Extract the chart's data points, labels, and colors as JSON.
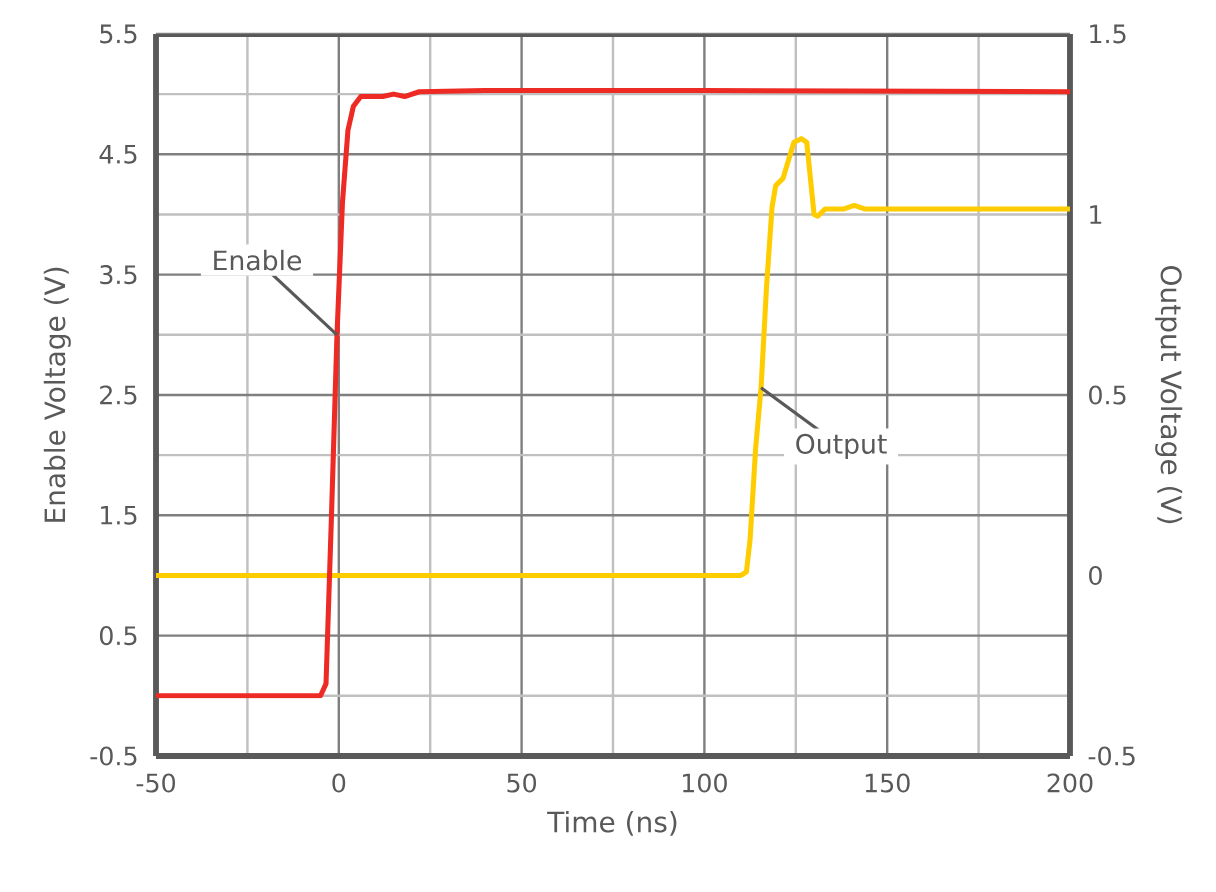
{
  "chart_data": {
    "type": "line",
    "xlabel": "Time (ns)",
    "ylabel": "Enable Voltage (V)",
    "y2label": "Output Voltage (V)",
    "xlim": [
      -50,
      200
    ],
    "ylim": [
      -0.5,
      5.5
    ],
    "y2lim": [
      -0.5,
      1.5
    ],
    "grid": true,
    "marker": "none",
    "xticks": [
      -50,
      {
        "value": -25,
        "label": null
      },
      0,
      {
        "value": 25,
        "label": null
      },
      50,
      {
        "value": 75,
        "label": null
      },
      100,
      {
        "value": 125,
        "label": null
      },
      150,
      {
        "value": 175,
        "label": null
      },
      200
    ],
    "yticks": [
      -0.5,
      {
        "value": 0,
        "label": null
      },
      0.5,
      1.5,
      {
        "value": 2,
        "label": null
      },
      2.5,
      {
        "value": 3,
        "label": null
      },
      3.5,
      {
        "value": 4,
        "label": null
      },
      4.5,
      {
        "value": 5,
        "label": null
      },
      5.5
    ],
    "y2ticks": [
      -0.5,
      0,
      0.5,
      1,
      1.5
    ],
    "series": [
      {
        "name": "Enable",
        "color": "#ee2a24",
        "x": [
          -50,
          -5,
          -3.5,
          -2,
          -0.5,
          1,
          2.5,
          4,
          6,
          12,
          15,
          18,
          22,
          40,
          100,
          200
        ],
        "values": [
          0,
          0,
          0.1,
          1.5,
          3,
          4.1,
          4.7,
          4.9,
          4.98,
          4.98,
          5.0,
          4.98,
          5.02,
          5.03,
          5.03,
          5.02
        ]
      },
      {
        "name": "Output",
        "color": "#ffcc00",
        "axis": "y2",
        "x": [
          -50,
          110,
          111.5,
          112.5,
          114,
          115.5,
          117,
          118.5,
          119.5,
          121.5,
          123,
          124.5,
          126.5,
          128,
          129,
          130,
          131,
          133,
          138,
          141,
          144,
          200
        ],
        "values": [
          0,
          0,
          0.01,
          0.1,
          0.35,
          0.52,
          0.8,
          1.02,
          1.08,
          1.1,
          1.15,
          1.2,
          1.21,
          1.2,
          1.1,
          1.0,
          0.995,
          1.015,
          1.015,
          1.025,
          1.015,
          1.015
        ]
      }
    ]
  }
}
